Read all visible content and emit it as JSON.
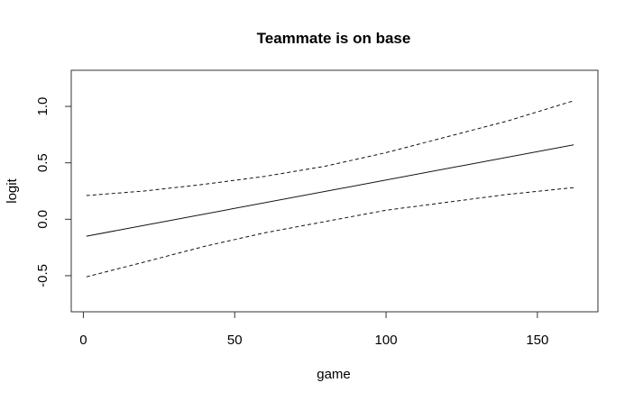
{
  "chart_data": {
    "type": "line",
    "title": "Teammate is on base",
    "xlabel": "game",
    "ylabel": "logit",
    "xlim": [
      -4,
      170
    ],
    "ylim": [
      -0.82,
      1.32
    ],
    "xticks": [
      0,
      50,
      100,
      150
    ],
    "xtick_labels": [
      "0",
      "50",
      "100",
      "150"
    ],
    "yticks": [
      -0.5,
      0.0,
      0.5,
      1.0
    ],
    "ytick_labels": [
      "-0.5",
      "0.0",
      "0.5",
      "1.0"
    ],
    "grid": false,
    "legend": "none",
    "series": [
      {
        "style": "solid",
        "x": [
          1,
          162
        ],
        "y": [
          -0.15,
          0.66
        ]
      },
      {
        "style": "dashed",
        "x": [
          1,
          20,
          40,
          60,
          80,
          100,
          120,
          140,
          162
        ],
        "y": [
          0.21,
          0.25,
          0.31,
          0.38,
          0.47,
          0.59,
          0.73,
          0.87,
          1.05
        ]
      },
      {
        "style": "dashed",
        "x": [
          1,
          20,
          40,
          60,
          80,
          100,
          120,
          140,
          162
        ],
        "y": [
          -0.51,
          -0.38,
          -0.24,
          -0.12,
          -0.02,
          0.08,
          0.15,
          0.22,
          0.28
        ]
      }
    ]
  }
}
